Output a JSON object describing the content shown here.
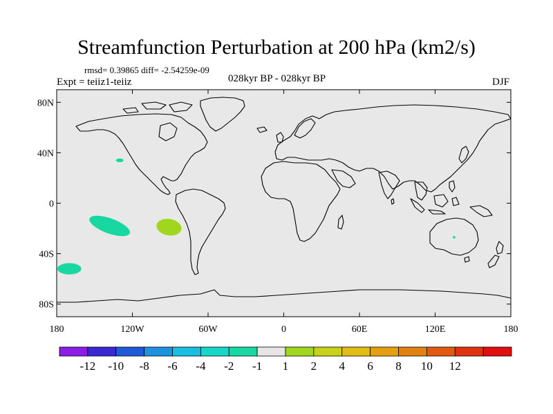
{
  "figure": {
    "title": "Streamfunction Perturbation at 200 hPa (km2/s)",
    "stats": "rmsd= 0.39865 diff= -2.54259e-09",
    "experiment": "Expt = teiiz1-teiiz",
    "period": "028kyr BP - 028kyr BP",
    "season": "DJF"
  },
  "map": {
    "projection": "cylindrical equidistant",
    "lon_range": [
      -180,
      180
    ],
    "lat_range": [
      -90,
      90
    ],
    "background_color": "#e8e8e8",
    "coastline_color": "#000000",
    "lat_ticks": [
      {
        "value": 80,
        "label": "80N"
      },
      {
        "value": 40,
        "label": "40N"
      },
      {
        "value": 0,
        "label": "0"
      },
      {
        "value": -40,
        "label": "40S"
      },
      {
        "value": -80,
        "label": "80S"
      }
    ],
    "lon_ticks": [
      {
        "value": -180,
        "label": "180"
      },
      {
        "value": -120,
        "label": "120W"
      },
      {
        "value": -60,
        "label": "60W"
      },
      {
        "value": 0,
        "label": "0"
      },
      {
        "value": 60,
        "label": "60E"
      },
      {
        "value": 120,
        "label": "120E"
      },
      {
        "value": 180,
        "label": "180"
      }
    ],
    "anomalies": [
      {
        "name": "south-pacific-negative",
        "lon": -138,
        "lat": -18,
        "lon_radius": 17,
        "lat_radius": 6,
        "tilt": 20,
        "color": "#19d7a0"
      },
      {
        "name": "southeast-pacific-positive",
        "lon": -91,
        "lat": -19,
        "lon_radius": 10,
        "lat_radius": 6.5,
        "tilt": 10,
        "color": "#a0d71e"
      },
      {
        "name": "southern-ocean-negative",
        "lon": -170,
        "lat": -52,
        "lon_radius": 9.5,
        "lat_radius": 4.5,
        "tilt": 0,
        "color": "#19d7a0"
      },
      {
        "name": "north-pacific-small-negative",
        "lon": -130,
        "lat": 34,
        "lon_radius": 3,
        "lat_radius": 1.5,
        "tilt": 0,
        "color": "#19d7a0"
      },
      {
        "name": "australia-small-negative",
        "lon": 135,
        "lat": -27,
        "lon_radius": 1,
        "lat_radius": 1,
        "tilt": 0,
        "color": "#19d7a0"
      }
    ]
  },
  "colorbar": {
    "colors": [
      "#8a1de6",
      "#3c28d2",
      "#1e5ad7",
      "#1e91e1",
      "#19bee1",
      "#19d7c8",
      "#19d7a0",
      "#e6e6e6",
      "#a0d71e",
      "#c8d219",
      "#e1be14",
      "#e6a00f",
      "#e1820f",
      "#e15a0f",
      "#e1320f",
      "#e10f0f"
    ],
    "labels": [
      "-12",
      "-10",
      "-8",
      "-6",
      "-4",
      "-2",
      "-1",
      "1",
      "2",
      "4",
      "6",
      "8",
      "10",
      "12"
    ]
  }
}
